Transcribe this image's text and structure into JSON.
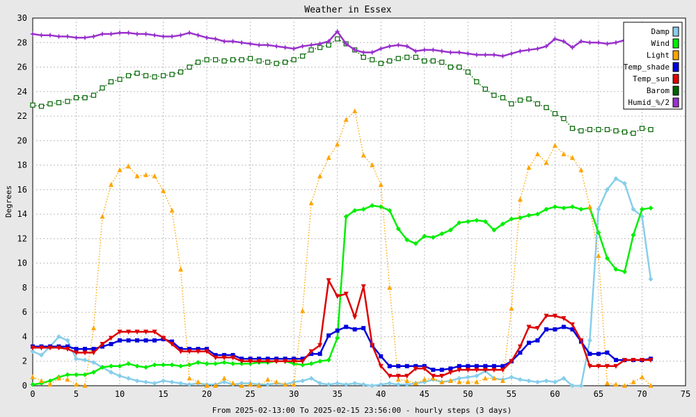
{
  "chart_data": {
    "type": "line",
    "title": "Weather in Essex",
    "xlabel": "From 2025-02-13:00 To 2025-02-15 23:56:00 - hourly steps (3 days)",
    "ylabel": "Degrees",
    "xlim": [
      0,
      75
    ],
    "ylim": [
      0,
      30
    ],
    "xticks": [
      0,
      5,
      10,
      15,
      20,
      25,
      30,
      35,
      40,
      45,
      50,
      55,
      60,
      65,
      70,
      75
    ],
    "yticks": [
      0,
      2,
      4,
      6,
      8,
      10,
      12,
      14,
      16,
      18,
      20,
      22,
      24,
      26,
      28,
      30
    ],
    "grid": true,
    "legend_position": "top-right",
    "x": [
      0,
      1,
      2,
      3,
      4,
      5,
      6,
      7,
      8,
      9,
      10,
      11,
      12,
      13,
      14,
      15,
      16,
      17,
      18,
      19,
      20,
      21,
      22,
      23,
      24,
      25,
      26,
      27,
      28,
      29,
      30,
      31,
      32,
      33,
      34,
      35,
      36,
      37,
      38,
      39,
      40,
      41,
      42,
      43,
      44,
      45,
      46,
      47,
      48,
      49,
      50,
      51,
      52,
      53,
      54,
      55,
      56,
      57,
      58,
      59,
      60,
      61,
      62,
      63,
      64,
      65,
      66,
      67,
      68,
      69,
      70,
      71
    ],
    "series": [
      {
        "name": "Damp",
        "color": "#87ceeb",
        "style": "solid",
        "marker": "diamond",
        "values": [
          2.8,
          2.5,
          3.2,
          4.0,
          3.7,
          2.2,
          2.1,
          1.9,
          1.5,
          1.1,
          0.8,
          0.6,
          0.4,
          0.3,
          0.2,
          0.4,
          0.3,
          0.2,
          0.1,
          0.2,
          0.1,
          0.1,
          0.3,
          0.1,
          0.2,
          0.2,
          0.1,
          0.1,
          0.2,
          0.1,
          0.3,
          0.4,
          0.6,
          0.2,
          0.1,
          0.2,
          0.1,
          0.2,
          0.1,
          0.0,
          0.1,
          0.2,
          0.1,
          0.1,
          0.2,
          0.3,
          0.5,
          0.3,
          0.4,
          0.6,
          0.7,
          0.8,
          1.2,
          0.6,
          0.5,
          0.7,
          0.5,
          0.4,
          0.3,
          0.4,
          0.3,
          0.6,
          0.0,
          0.0,
          3.7,
          14.4,
          16.0,
          16.9,
          16.5,
          14.4,
          13.8,
          8.7
        ]
      },
      {
        "name": "Wind",
        "color": "#00ee00",
        "style": "solid",
        "marker": "diamond",
        "values": [
          0.1,
          0.2,
          0.4,
          0.7,
          0.9,
          0.9,
          0.9,
          1.1,
          1.5,
          1.6,
          1.6,
          1.8,
          1.6,
          1.5,
          1.7,
          1.7,
          1.7,
          1.6,
          1.7,
          1.9,
          1.8,
          1.8,
          1.9,
          1.8,
          1.8,
          1.8,
          1.9,
          1.9,
          2.0,
          2.0,
          1.8,
          1.7,
          1.8,
          2.0,
          2.1,
          3.9,
          13.8,
          14.3,
          14.4,
          14.7,
          14.6,
          14.3,
          12.8,
          11.9,
          11.6,
          12.2,
          12.1,
          12.4,
          12.7,
          13.3,
          13.4,
          13.5,
          13.4,
          12.7,
          13.2,
          13.6,
          13.7,
          13.9,
          14.0,
          14.4,
          14.6,
          14.5,
          14.6,
          14.4,
          14.5,
          12.5,
          10.4,
          9.5,
          9.3,
          12.3,
          14.4,
          14.5
        ]
      },
      {
        "name": "Light",
        "color": "#ffa500",
        "style": "dotted",
        "marker": "triangle",
        "values": [
          0.7,
          0.4,
          0.1,
          0.6,
          0.5,
          0.1,
          0.0,
          4.7,
          13.8,
          16.4,
          17.6,
          17.9,
          17.1,
          17.2,
          17.1,
          15.9,
          14.3,
          9.5,
          0.6,
          0.3,
          0.0,
          0.0,
          0.6,
          0.2,
          0.0,
          0.1,
          0.0,
          0.5,
          0.3,
          0.1,
          0.1,
          6.1,
          14.9,
          17.1,
          18.6,
          19.7,
          21.7,
          22.4,
          18.8,
          18.0,
          16.4,
          8.0,
          0.5,
          0.4,
          0.2,
          0.5,
          0.6,
          0.3,
          0.4,
          0.3,
          0.3,
          0.3,
          0.6,
          0.6,
          0.4,
          6.3,
          15.2,
          17.8,
          18.9,
          18.2,
          19.6,
          18.9,
          18.6,
          17.6,
          14.6,
          10.6,
          0.2,
          0.1,
          0.0,
          0.3,
          0.7,
          0.0
        ]
      },
      {
        "name": "Temp_shade",
        "color": "#0000dd",
        "style": "solid",
        "marker": "square",
        "values": [
          3.2,
          3.2,
          3.2,
          3.2,
          3.2,
          3.0,
          3.0,
          3.0,
          3.2,
          3.4,
          3.7,
          3.7,
          3.7,
          3.7,
          3.7,
          3.8,
          3.6,
          3.0,
          3.0,
          3.0,
          3.0,
          2.5,
          2.5,
          2.5,
          2.2,
          2.2,
          2.2,
          2.2,
          2.2,
          2.2,
          2.2,
          2.2,
          2.6,
          2.6,
          4.1,
          4.5,
          4.8,
          4.6,
          4.7,
          3.3,
          2.4,
          1.6,
          1.6,
          1.6,
          1.6,
          1.6,
          1.3,
          1.3,
          1.4,
          1.6,
          1.6,
          1.6,
          1.6,
          1.6,
          1.6,
          2.0,
          2.7,
          3.5,
          3.7,
          4.6,
          4.6,
          4.8,
          4.6,
          3.6,
          2.6,
          2.6,
          2.7,
          2.1,
          2.1,
          2.1,
          2.1,
          2.2
        ]
      },
      {
        "name": "Temp_sun",
        "color": "#dd0000",
        "style": "solid",
        "marker": "triangle-down",
        "values": [
          3.1,
          3.1,
          3.1,
          3.1,
          3.0,
          2.7,
          2.7,
          2.7,
          3.4,
          3.9,
          4.4,
          4.4,
          4.4,
          4.4,
          4.4,
          3.9,
          3.4,
          2.8,
          2.8,
          2.8,
          2.8,
          2.3,
          2.3,
          2.3,
          2.0,
          2.0,
          2.0,
          2.0,
          2.0,
          2.0,
          2.0,
          2.0,
          2.8,
          3.3,
          8.6,
          7.3,
          7.5,
          5.6,
          8.1,
          3.3,
          1.6,
          0.8,
          0.8,
          0.8,
          1.4,
          1.4,
          0.8,
          0.8,
          1.1,
          1.3,
          1.3,
          1.3,
          1.3,
          1.3,
          1.3,
          2.0,
          3.2,
          4.8,
          4.7,
          5.7,
          5.7,
          5.5,
          5.0,
          3.7,
          1.6,
          1.6,
          1.6,
          1.6,
          2.1,
          2.1,
          2.1,
          2.1
        ]
      },
      {
        "name": "Barom",
        "color": "#006400",
        "style": "dotted",
        "marker": "hollow-square",
        "values": [
          22.9,
          22.8,
          23.0,
          23.1,
          23.2,
          23.5,
          23.5,
          23.7,
          24.3,
          24.8,
          25.0,
          25.3,
          25.5,
          25.3,
          25.2,
          25.3,
          25.4,
          25.6,
          26.0,
          26.4,
          26.6,
          26.6,
          26.5,
          26.6,
          26.6,
          26.7,
          26.5,
          26.4,
          26.3,
          26.4,
          26.6,
          26.9,
          27.4,
          27.6,
          27.8,
          28.3,
          27.9,
          27.4,
          26.8,
          26.6,
          26.3,
          26.5,
          26.7,
          26.8,
          26.8,
          26.5,
          26.5,
          26.4,
          26.0,
          26.0,
          25.6,
          24.8,
          24.2,
          23.7,
          23.5,
          23.0,
          23.3,
          23.4,
          23.0,
          22.7,
          22.2,
          21.8,
          21.0,
          20.8,
          20.9,
          20.9,
          20.9,
          20.8,
          20.7,
          20.6,
          21.0,
          20.9
        ]
      },
      {
        "name": "Humid_%/2",
        "color": "#9932cc",
        "style": "solid",
        "marker": "star",
        "values": [
          28.7,
          28.6,
          28.6,
          28.5,
          28.5,
          28.4,
          28.4,
          28.5,
          28.7,
          28.7,
          28.8,
          28.8,
          28.7,
          28.7,
          28.6,
          28.5,
          28.5,
          28.6,
          28.8,
          28.6,
          28.4,
          28.3,
          28.1,
          28.1,
          28.0,
          27.9,
          27.8,
          27.8,
          27.7,
          27.6,
          27.5,
          27.7,
          27.8,
          27.9,
          28.1,
          28.9,
          27.9,
          27.4,
          27.2,
          27.2,
          27.5,
          27.7,
          27.8,
          27.7,
          27.3,
          27.4,
          27.4,
          27.3,
          27.2,
          27.2,
          27.1,
          27.0,
          27.0,
          27.0,
          26.9,
          27.1,
          27.3,
          27.4,
          27.5,
          27.7,
          28.3,
          28.1,
          27.6,
          28.1,
          28.0,
          28.0,
          27.9,
          28.0,
          28.2,
          28.1,
          28.1,
          28.2
        ]
      }
    ]
  }
}
